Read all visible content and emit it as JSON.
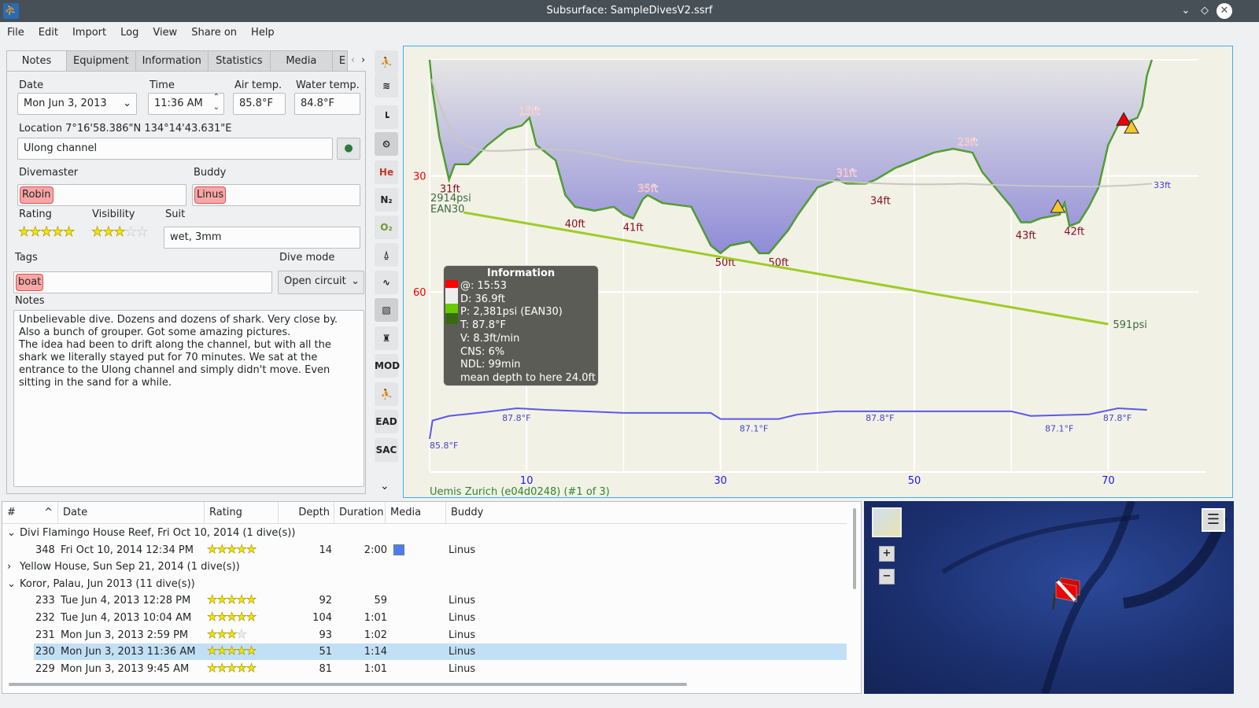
{
  "window": {
    "title": "Subsurface: SampleDivesV2.ssrf"
  },
  "menu": [
    "File",
    "Edit",
    "Import",
    "Log",
    "View",
    "Share on",
    "Help"
  ],
  "tabs": [
    "Notes",
    "Equipment",
    "Information",
    "Statistics",
    "Media",
    "E"
  ],
  "notes": {
    "date_label": "Date",
    "date": "Mon Jun 3, 2013",
    "time_label": "Time",
    "time": "11:36 AM",
    "air_label": "Air temp.",
    "air": "85.8°F",
    "water_label": "Water temp.",
    "water": "84.8°F",
    "location_label": "Location 7°16'58.386\"N 134°14'43.631\"E",
    "location": "Ulong channel",
    "divemaster_label": "Divemaster",
    "divemaster": "Robin",
    "buddy_label": "Buddy",
    "buddy": "Linus",
    "rating_label": "Rating",
    "rating": 5,
    "visibility_label": "Visibility",
    "visibility": 3,
    "suit_label": "Suit",
    "suit": "wet, 3mm",
    "tags_label": "Tags",
    "tags": "boat",
    "divemode_label": "Dive mode",
    "divemode": "Open circuit",
    "notes_label": "Notes",
    "notes": "Unbelievable dive. Dozens and dozens of shark. Very close by. Also a bunch of grouper. Got some amazing pictures.\nThe idea had been to drift along the channel, but with all the shark we literally stayed put for 70 minutes. We sat at the entrance to the Ulong channel and simply didn't move. Even sitting in the sand for a while."
  },
  "toolbar": [
    "profile-icon",
    "ceiling-icon",
    "calc-ceiling-icon",
    "deco-icon",
    "He",
    "N₂",
    "O₂",
    "scale-icon",
    "ruler-icon",
    "photos-icon",
    "tank-switch-icon",
    "MOD",
    "ndl-tts-icon",
    "EAD",
    "SAC"
  ],
  "info_box": {
    "title": "Information",
    "lines": [
      "@: 15:53",
      "D: 36.9ft",
      "P: 2,381psi (EAN30)",
      "T: 87.8°F",
      "V: 8.3ft/min",
      "CNS: 6%",
      "NDL: 99min",
      "mean depth to here 24.0ft"
    ]
  },
  "chart_data": {
    "type": "line",
    "x_ticks": [
      10,
      30,
      50,
      70
    ],
    "y_ticks": [
      30,
      60
    ],
    "xlim": [
      0,
      80
    ],
    "ylim_depth": [
      0,
      80
    ],
    "depth": [
      [
        0,
        0
      ],
      [
        0.3,
        8
      ],
      [
        1,
        20
      ],
      [
        2,
        31
      ],
      [
        2.6,
        27
      ],
      [
        4,
        27
      ],
      [
        6,
        22
      ],
      [
        8,
        18
      ],
      [
        9.5,
        17
      ],
      [
        10.3,
        15
      ],
      [
        11,
        22
      ],
      [
        13,
        26
      ],
      [
        14,
        35
      ],
      [
        15,
        38
      ],
      [
        17,
        39
      ],
      [
        19,
        38
      ],
      [
        20,
        40
      ],
      [
        21,
        41
      ],
      [
        22,
        36
      ],
      [
        22.5,
        35
      ],
      [
        24,
        37
      ],
      [
        27,
        38
      ],
      [
        28,
        43
      ],
      [
        29,
        48
      ],
      [
        30,
        50
      ],
      [
        31,
        48
      ],
      [
        33,
        47
      ],
      [
        34,
        50
      ],
      [
        35,
        50
      ],
      [
        36,
        47
      ],
      [
        37,
        44
      ],
      [
        38,
        40
      ],
      [
        40,
        33
      ],
      [
        42,
        31
      ],
      [
        43,
        32
      ],
      [
        45,
        32
      ],
      [
        46,
        31
      ],
      [
        48,
        28
      ],
      [
        50,
        26
      ],
      [
        52,
        24
      ],
      [
        54,
        23
      ],
      [
        56,
        24
      ],
      [
        57,
        29
      ],
      [
        59,
        35
      ],
      [
        60,
        38
      ],
      [
        61,
        42
      ],
      [
        62,
        42
      ],
      [
        63,
        41
      ],
      [
        65,
        40
      ],
      [
        65.5,
        37
      ],
      [
        66,
        43
      ],
      [
        67,
        42
      ],
      [
        68,
        38
      ],
      [
        69,
        33
      ],
      [
        70,
        22
      ],
      [
        71,
        17
      ],
      [
        72,
        16
      ],
      [
        73,
        15
      ],
      [
        73.5,
        12
      ],
      [
        74,
        4
      ],
      [
        74.5,
        0
      ]
    ],
    "depth_labels": [
      {
        "t": 2.1,
        "d": 31,
        "text": "31ft",
        "kind": "max"
      },
      {
        "t": 10.3,
        "d": 15,
        "text": "15ft",
        "kind": "min"
      },
      {
        "t": 15,
        "d": 40,
        "text": "40ft",
        "kind": "max"
      },
      {
        "t": 21,
        "d": 41,
        "text": "41ft",
        "kind": "max"
      },
      {
        "t": 22.5,
        "d": 35,
        "text": "35ft",
        "kind": "min"
      },
      {
        "t": 30.5,
        "d": 50,
        "text": "50ft",
        "kind": "max"
      },
      {
        "t": 36,
        "d": 50,
        "text": "50ft",
        "kind": "max"
      },
      {
        "t": 43,
        "d": 31,
        "text": "31ft",
        "kind": "min"
      },
      {
        "t": 46.5,
        "d": 34,
        "text": "34ft",
        "kind": "max"
      },
      {
        "t": 55.5,
        "d": 23,
        "text": "23ft",
        "kind": "min"
      },
      {
        "t": 61.5,
        "d": 43,
        "text": "43ft",
        "kind": "max"
      },
      {
        "t": 66.5,
        "d": 42,
        "text": "42ft",
        "kind": "max"
      }
    ],
    "mean_depth_label": "33ft",
    "pressure": {
      "start": 2914,
      "end": 591,
      "start_label": "2914psi",
      "end_label": "591psi",
      "gas": "EAN30",
      "t_start": 3.5,
      "t_end": 70
    },
    "temperature": [
      [
        0,
        85.8
      ],
      [
        0.3,
        87.0
      ],
      [
        2,
        87.3
      ],
      [
        5,
        87.5
      ],
      [
        9,
        87.8
      ],
      [
        12,
        87.7
      ],
      [
        20,
        87.5
      ],
      [
        29,
        87.5
      ],
      [
        30,
        87.1
      ],
      [
        36,
        87.1
      ],
      [
        38,
        87.4
      ],
      [
        42,
        87.6
      ],
      [
        60,
        87.6
      ],
      [
        62,
        87.3
      ],
      [
        68,
        87.4
      ],
      [
        71,
        87.8
      ],
      [
        74,
        87.7
      ]
    ],
    "temp_labels": [
      {
        "t": 6.5,
        "v": 87.8,
        "text": "87.8°F"
      },
      {
        "t": 0,
        "v": 85.8,
        "text": "85.8°F"
      },
      {
        "t": 31,
        "v": 87.1,
        "text": "87.1°F"
      },
      {
        "t": 44,
        "v": 87.8,
        "text": "87.8°F"
      },
      {
        "t": 62.5,
        "v": 87.1,
        "text": "87.1°F"
      },
      {
        "t": 68.5,
        "v": 87.8,
        "text": "87.8°F"
      }
    ],
    "computer": "Uemis Zurich (e04d0248) (#1 of 3)"
  },
  "colors": {
    "depth_fill": "#9f9de0",
    "selection": "#c2e0f5",
    "accent": "#3daee9"
  },
  "divelist": {
    "headers": [
      "#",
      "Date",
      "Rating",
      "Depth",
      "Duration",
      "Media",
      "Buddy"
    ],
    "rows": [
      {
        "type": "trip",
        "text": "Divi Flamingo House Reef, Fri Oct 10, 2014 (1 dive(s))",
        "expanded": true
      },
      {
        "type": "dive",
        "num": "348",
        "date": "Fri Oct 10, 2014 12:34 PM",
        "rating": 5,
        "depth": "14",
        "duration": "2:00",
        "media": true,
        "buddy": "Linus"
      },
      {
        "type": "trip",
        "text": "Yellow House, Sun Sep 21, 2014 (1 dive(s))",
        "expanded": false
      },
      {
        "type": "trip",
        "text": "Koror, Palau, Jun 2013 (11 dive(s))",
        "expanded": true
      },
      {
        "type": "dive",
        "num": "233",
        "date": "Tue Jun 4, 2013 12:28 PM",
        "rating": 5,
        "depth": "92",
        "duration": "59",
        "buddy": "Linus"
      },
      {
        "type": "dive",
        "num": "232",
        "date": "Tue Jun 4, 2013 10:04 AM",
        "rating": 5,
        "depth": "104",
        "duration": "1:01",
        "buddy": "Linus"
      },
      {
        "type": "dive",
        "num": "231",
        "date": "Mon Jun 3, 2013 2:59 PM",
        "rating": 3,
        "depth": "93",
        "duration": "1:02",
        "buddy": "Linus"
      },
      {
        "type": "dive",
        "num": "230",
        "date": "Mon Jun 3, 2013 11:36 AM",
        "rating": 5,
        "depth": "51",
        "duration": "1:14",
        "buddy": "Linus",
        "selected": true
      },
      {
        "type": "dive",
        "num": "229",
        "date": "Mon Jun 3, 2013 9:45 AM",
        "rating": 5,
        "depth": "81",
        "duration": "1:01",
        "buddy": "Linus"
      }
    ]
  },
  "map": {
    "zoom_in": "+",
    "zoom_out": "−"
  }
}
